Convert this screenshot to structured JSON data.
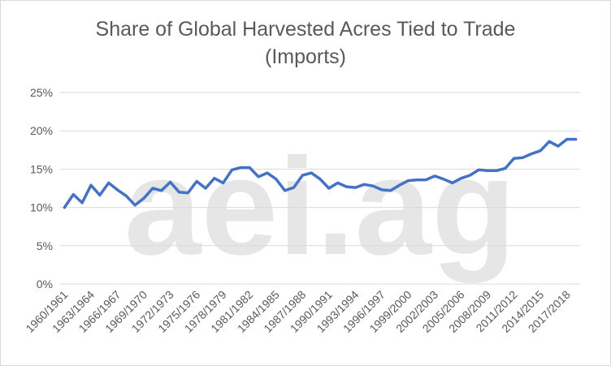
{
  "watermark": "aei.ag",
  "colors": {
    "line": "#4472C4",
    "grid": "#d9d9d9",
    "text": "#595959",
    "watermark": "#e6e6e6"
  },
  "chart_data": {
    "type": "line",
    "title": "Share of Global Harvested Acres Tied to Trade\n(Imports)",
    "xlabel": "",
    "ylabel": "",
    "ylim": [
      0,
      25
    ],
    "y_ticks": [
      "0%",
      "5%",
      "10%",
      "15%",
      "20%",
      "25%"
    ],
    "y_tick_values": [
      0,
      5,
      10,
      15,
      20,
      25
    ],
    "grid": true,
    "legend": "none",
    "categories": [
      "1960/1961",
      "1961/1962",
      "1962/1963",
      "1963/1964",
      "1964/1965",
      "1965/1966",
      "1966/1967",
      "1967/1968",
      "1968/1969",
      "1969/1970",
      "1970/1971",
      "1971/1972",
      "1972/1973",
      "1973/1974",
      "1974/1975",
      "1975/1976",
      "1976/1977",
      "1977/1978",
      "1978/1979",
      "1979/1980",
      "1980/1981",
      "1981/1982",
      "1982/1983",
      "1983/1984",
      "1984/1985",
      "1985/1986",
      "1986/1987",
      "1987/1988",
      "1988/1989",
      "1989/1990",
      "1990/1991",
      "1991/1992",
      "1992/1993",
      "1993/1994",
      "1994/1995",
      "1995/1996",
      "1996/1997",
      "1997/1998",
      "1998/1999",
      "1999/2000",
      "2000/2001",
      "2001/2002",
      "2002/2003",
      "2003/2004",
      "2004/2005",
      "2005/2006",
      "2006/2007",
      "2007/2008",
      "2008/2009",
      "2009/2010",
      "2010/2011",
      "2011/2012",
      "2012/2013",
      "2013/2014",
      "2014/2015",
      "2015/2016",
      "2016/2017",
      "2017/2018",
      "2018/2019"
    ],
    "x_tick_labels_shown": [
      "1960/1961",
      "1963/1964",
      "1966/1967",
      "1969/1970",
      "1972/1973",
      "1975/1976",
      "1978/1979",
      "1981/1982",
      "1984/1985",
      "1987/1988",
      "1990/1991",
      "1993/1994",
      "1996/1997",
      "1999/2000",
      "2002/2003",
      "2005/2006",
      "2008/2009",
      "2011/2012",
      "2014/2015",
      "2017/2018"
    ],
    "series": [
      {
        "values": [
          10.0,
          11.7,
          10.6,
          12.9,
          11.6,
          13.2,
          12.3,
          11.5,
          10.3,
          11.2,
          12.5,
          12.2,
          13.3,
          12.0,
          11.9,
          13.4,
          12.5,
          13.8,
          13.2,
          14.9,
          15.2,
          15.2,
          14.0,
          14.5,
          13.7,
          12.2,
          12.6,
          14.2,
          14.5,
          13.7,
          12.5,
          13.2,
          12.7,
          12.6,
          13.0,
          12.8,
          12.3,
          12.2,
          12.9,
          13.5,
          13.6,
          13.6,
          14.1,
          13.7,
          13.2,
          13.8,
          14.2,
          14.9,
          14.8,
          14.8,
          15.1,
          16.4,
          16.5,
          17.0,
          17.4,
          18.6,
          18.0,
          18.9,
          18.9
        ]
      }
    ]
  }
}
